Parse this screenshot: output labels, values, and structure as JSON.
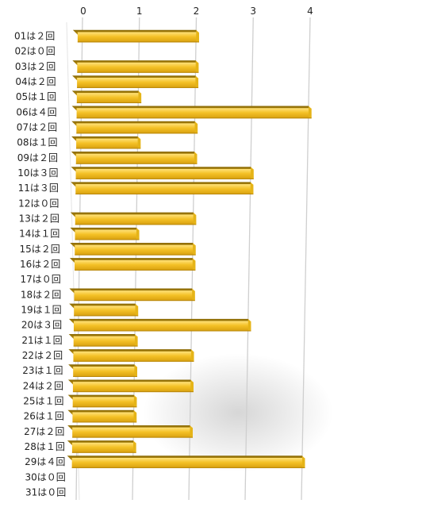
{
  "chart_data": {
    "type": "bar",
    "orientation": "horizontal",
    "style": "3d-perspective",
    "title": "",
    "xlabel": "",
    "ylabel": "",
    "xlim": [
      0,
      4
    ],
    "x_ticks": [
      "0",
      "1",
      "2",
      "3",
      "4"
    ],
    "grid": "vertical",
    "legend": "none",
    "bar_color": "#F0B81E",
    "categories": [
      "01は２回",
      "02は０回",
      "03は２回",
      "04は２回",
      "05は１回",
      "06は４回",
      "07は２回",
      "08は１回",
      "09は２回",
      "10は３回",
      "11は３回",
      "12は０回",
      "13は２回",
      "14は１回",
      "15は２回",
      "16は２回",
      "17は０回",
      "18は２回",
      "19は１回",
      "20は３回",
      "21は１回",
      "22は２回",
      "23は１回",
      "24は２回",
      "25は１回",
      "26は１回",
      "27は２回",
      "28は１回",
      "29は４回",
      "30は０回",
      "31は０回"
    ],
    "values": [
      2,
      0,
      2,
      2,
      1,
      4,
      2,
      1,
      2,
      3,
      3,
      0,
      2,
      1,
      2,
      2,
      0,
      2,
      1,
      3,
      1,
      2,
      1,
      2,
      1,
      1,
      2,
      1,
      4,
      0,
      0
    ]
  }
}
